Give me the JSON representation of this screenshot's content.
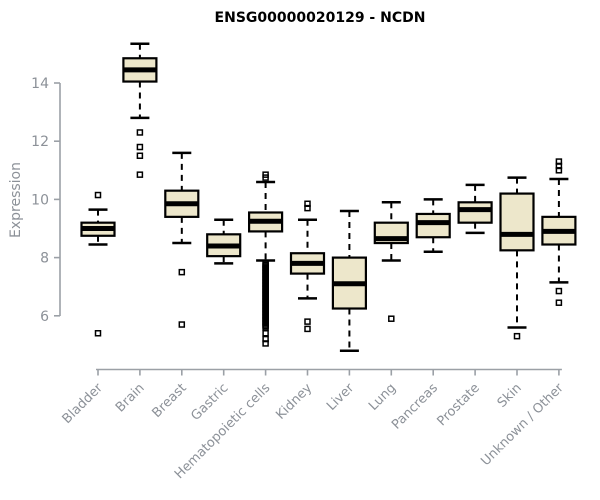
{
  "chart_data": {
    "type": "boxplot",
    "title": "ENSG00000020129 - NCDN",
    "ylabel": "Expression",
    "xlabel": "",
    "yticks": [
      6,
      8,
      10,
      12,
      14
    ],
    "ylim": [
      4.6,
      15.6
    ],
    "grid": false,
    "legend": false,
    "box_fill": "#EDE7CB",
    "box_border": "#000000",
    "median_color": "#000000",
    "axis_color": "#9BA0A6",
    "tick_label_color": "#8C9198",
    "title_color": "#000000",
    "categories": [
      "Bladder",
      "Brain",
      "Breast",
      "Gastric",
      "Hematopoietic cells",
      "Kidney",
      "Liver",
      "Lung",
      "Pancreas",
      "Prostate",
      "Skin",
      "Unknown / Other"
    ],
    "series": [
      {
        "name": "Bladder",
        "whisker_low": 8.45,
        "q1": 8.75,
        "median": 9.0,
        "q3": 9.2,
        "whisker_high": 9.65,
        "outliers": [
          10.15,
          5.4
        ]
      },
      {
        "name": "Brain",
        "whisker_low": 12.8,
        "q1": 14.05,
        "median": 14.45,
        "q3": 14.85,
        "whisker_high": 15.35,
        "outliers": [
          12.3,
          11.8,
          11.5,
          10.85
        ]
      },
      {
        "name": "Breast",
        "whisker_low": 8.5,
        "q1": 9.4,
        "median": 9.85,
        "q3": 10.3,
        "whisker_high": 11.6,
        "outliers": [
          7.5,
          5.7
        ]
      },
      {
        "name": "Gastric",
        "whisker_low": 7.8,
        "q1": 8.05,
        "median": 8.4,
        "q3": 8.8,
        "whisker_high": 9.3,
        "outliers": []
      },
      {
        "name": "Hematopoietic cells",
        "whisker_low": 7.9,
        "q1": 8.9,
        "median": 9.25,
        "q3": 9.55,
        "whisker_high": 10.6,
        "outliers": [
          10.85,
          10.75,
          7.8,
          7.75,
          7.7,
          7.65,
          7.6,
          7.55,
          7.5,
          7.45,
          7.4,
          7.35,
          7.3,
          7.25,
          7.2,
          7.15,
          7.1,
          7.05,
          7.0,
          6.95,
          6.9,
          6.85,
          6.8,
          6.75,
          6.7,
          6.65,
          6.6,
          6.55,
          6.5,
          6.45,
          6.4,
          6.35,
          6.3,
          6.25,
          6.2,
          6.15,
          6.1,
          6.05,
          6.0,
          5.95,
          5.9,
          5.85,
          5.8,
          5.75,
          5.7,
          5.65,
          5.6,
          5.4,
          5.2,
          5.05
        ]
      },
      {
        "name": "Kidney",
        "whisker_low": 6.6,
        "q1": 7.45,
        "median": 7.8,
        "q3": 8.15,
        "whisker_high": 9.3,
        "outliers": [
          9.85,
          9.7,
          5.8,
          5.55
        ]
      },
      {
        "name": "Liver",
        "whisker_low": 4.8,
        "q1": 6.25,
        "median": 7.1,
        "q3": 8.0,
        "whisker_high": 9.6,
        "outliers": []
      },
      {
        "name": "Lung",
        "whisker_low": 7.9,
        "q1": 8.5,
        "median": 8.65,
        "q3": 9.2,
        "whisker_high": 9.9,
        "outliers": [
          5.9
        ]
      },
      {
        "name": "Pancreas",
        "whisker_low": 8.2,
        "q1": 8.7,
        "median": 9.2,
        "q3": 9.5,
        "whisker_high": 10.0,
        "outliers": []
      },
      {
        "name": "Prostate",
        "whisker_low": 8.85,
        "q1": 9.2,
        "median": 9.65,
        "q3": 9.9,
        "whisker_high": 10.5,
        "outliers": []
      },
      {
        "name": "Skin",
        "whisker_low": 5.6,
        "q1": 8.25,
        "median": 8.8,
        "q3": 10.2,
        "whisker_high": 10.75,
        "outliers": [
          5.3
        ]
      },
      {
        "name": "Unknown / Other",
        "whisker_low": 7.15,
        "q1": 8.45,
        "median": 8.9,
        "q3": 9.4,
        "whisker_high": 10.7,
        "outliers": [
          11.3,
          11.15,
          11.0,
          6.85,
          6.45
        ]
      }
    ]
  }
}
